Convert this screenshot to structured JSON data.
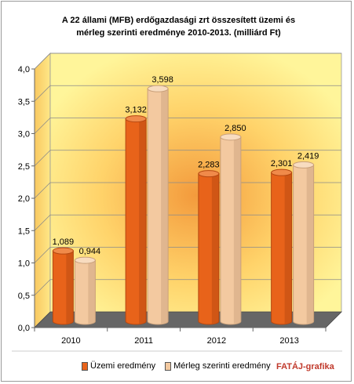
{
  "title_line1": "A 22 állami (MFB) erdőgazdasági zrt összesített üzemi és",
  "title_line2": "mérleg szerinti eredménye 2010-2013. (milliárd Ft)",
  "brand": "FATÁJ-grafika",
  "colors": {
    "series1": "#e8631a",
    "series1_dark": "#b44710",
    "series1_top": "#f08a4a",
    "series2": "#f3c9a0",
    "series2_dark": "#c9a07a",
    "series2_top": "#f8dcc0",
    "floor": "#666666",
    "back_wall": "#ffe97a",
    "side_wall": "#f5d85a"
  },
  "chart_data": {
    "type": "bar",
    "categories": [
      "2010",
      "2011",
      "2012",
      "2013"
    ],
    "series": [
      {
        "name": "Üzemi eredmény",
        "values": [
          1.089,
          3.132,
          2.283,
          2.301
        ],
        "labels": [
          "1,089",
          "3,132",
          "2,283",
          "2,301"
        ]
      },
      {
        "name": "Mérleg szerinti eredmény",
        "values": [
          0.944,
          3.598,
          2.85,
          2.419
        ],
        "labels": [
          "0,944",
          "3,598",
          "2,850",
          "2,419"
        ]
      }
    ],
    "ylim": [
      0,
      4.0
    ],
    "yticks": [
      "0,0",
      "0,5",
      "1,0",
      "1,5",
      "2,0",
      "2,5",
      "3,0",
      "3,5",
      "4,0"
    ],
    "grid": true,
    "legend_position": "bottom"
  }
}
